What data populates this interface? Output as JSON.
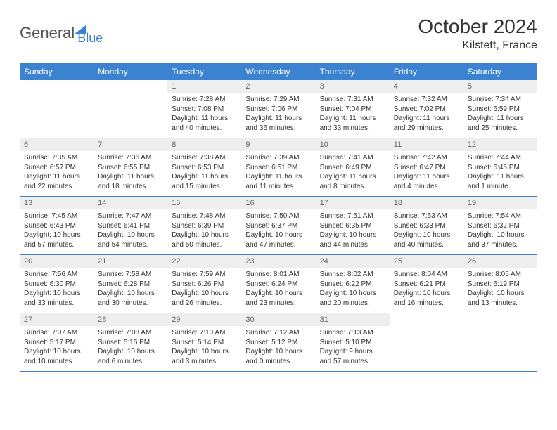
{
  "logo": {
    "general": "General",
    "blue": "Blue"
  },
  "title": "October 2024",
  "location": "Kilstett, France",
  "weekdays": [
    "Sunday",
    "Monday",
    "Tuesday",
    "Wednesday",
    "Thursday",
    "Friday",
    "Saturday"
  ],
  "colors": {
    "header_bg": "#3b82d0",
    "header_text": "#ffffff",
    "daynum_bg": "#eeeeee",
    "daynum_text": "#666666",
    "border": "#3b82d0",
    "body_text": "#333333",
    "logo_gray": "#555555",
    "logo_blue": "#3b82d0"
  },
  "weeks": [
    [
      null,
      null,
      {
        "n": "1",
        "sr": "Sunrise: 7:28 AM",
        "ss": "Sunset: 7:08 PM",
        "d1": "Daylight: 11 hours",
        "d2": "and 40 minutes."
      },
      {
        "n": "2",
        "sr": "Sunrise: 7:29 AM",
        "ss": "Sunset: 7:06 PM",
        "d1": "Daylight: 11 hours",
        "d2": "and 36 minutes."
      },
      {
        "n": "3",
        "sr": "Sunrise: 7:31 AM",
        "ss": "Sunset: 7:04 PM",
        "d1": "Daylight: 11 hours",
        "d2": "and 33 minutes."
      },
      {
        "n": "4",
        "sr": "Sunrise: 7:32 AM",
        "ss": "Sunset: 7:02 PM",
        "d1": "Daylight: 11 hours",
        "d2": "and 29 minutes."
      },
      {
        "n": "5",
        "sr": "Sunrise: 7:34 AM",
        "ss": "Sunset: 6:59 PM",
        "d1": "Daylight: 11 hours",
        "d2": "and 25 minutes."
      }
    ],
    [
      {
        "n": "6",
        "sr": "Sunrise: 7:35 AM",
        "ss": "Sunset: 6:57 PM",
        "d1": "Daylight: 11 hours",
        "d2": "and 22 minutes."
      },
      {
        "n": "7",
        "sr": "Sunrise: 7:36 AM",
        "ss": "Sunset: 6:55 PM",
        "d1": "Daylight: 11 hours",
        "d2": "and 18 minutes."
      },
      {
        "n": "8",
        "sr": "Sunrise: 7:38 AM",
        "ss": "Sunset: 6:53 PM",
        "d1": "Daylight: 11 hours",
        "d2": "and 15 minutes."
      },
      {
        "n": "9",
        "sr": "Sunrise: 7:39 AM",
        "ss": "Sunset: 6:51 PM",
        "d1": "Daylight: 11 hours",
        "d2": "and 11 minutes."
      },
      {
        "n": "10",
        "sr": "Sunrise: 7:41 AM",
        "ss": "Sunset: 6:49 PM",
        "d1": "Daylight: 11 hours",
        "d2": "and 8 minutes."
      },
      {
        "n": "11",
        "sr": "Sunrise: 7:42 AM",
        "ss": "Sunset: 6:47 PM",
        "d1": "Daylight: 11 hours",
        "d2": "and 4 minutes."
      },
      {
        "n": "12",
        "sr": "Sunrise: 7:44 AM",
        "ss": "Sunset: 6:45 PM",
        "d1": "Daylight: 11 hours",
        "d2": "and 1 minute."
      }
    ],
    [
      {
        "n": "13",
        "sr": "Sunrise: 7:45 AM",
        "ss": "Sunset: 6:43 PM",
        "d1": "Daylight: 10 hours",
        "d2": "and 57 minutes."
      },
      {
        "n": "14",
        "sr": "Sunrise: 7:47 AM",
        "ss": "Sunset: 6:41 PM",
        "d1": "Daylight: 10 hours",
        "d2": "and 54 minutes."
      },
      {
        "n": "15",
        "sr": "Sunrise: 7:48 AM",
        "ss": "Sunset: 6:39 PM",
        "d1": "Daylight: 10 hours",
        "d2": "and 50 minutes."
      },
      {
        "n": "16",
        "sr": "Sunrise: 7:50 AM",
        "ss": "Sunset: 6:37 PM",
        "d1": "Daylight: 10 hours",
        "d2": "and 47 minutes."
      },
      {
        "n": "17",
        "sr": "Sunrise: 7:51 AM",
        "ss": "Sunset: 6:35 PM",
        "d1": "Daylight: 10 hours",
        "d2": "and 44 minutes."
      },
      {
        "n": "18",
        "sr": "Sunrise: 7:53 AM",
        "ss": "Sunset: 6:33 PM",
        "d1": "Daylight: 10 hours",
        "d2": "and 40 minutes."
      },
      {
        "n": "19",
        "sr": "Sunrise: 7:54 AM",
        "ss": "Sunset: 6:32 PM",
        "d1": "Daylight: 10 hours",
        "d2": "and 37 minutes."
      }
    ],
    [
      {
        "n": "20",
        "sr": "Sunrise: 7:56 AM",
        "ss": "Sunset: 6:30 PM",
        "d1": "Daylight: 10 hours",
        "d2": "and 33 minutes."
      },
      {
        "n": "21",
        "sr": "Sunrise: 7:58 AM",
        "ss": "Sunset: 6:28 PM",
        "d1": "Daylight: 10 hours",
        "d2": "and 30 minutes."
      },
      {
        "n": "22",
        "sr": "Sunrise: 7:59 AM",
        "ss": "Sunset: 6:26 PM",
        "d1": "Daylight: 10 hours",
        "d2": "and 26 minutes."
      },
      {
        "n": "23",
        "sr": "Sunrise: 8:01 AM",
        "ss": "Sunset: 6:24 PM",
        "d1": "Daylight: 10 hours",
        "d2": "and 23 minutes."
      },
      {
        "n": "24",
        "sr": "Sunrise: 8:02 AM",
        "ss": "Sunset: 6:22 PM",
        "d1": "Daylight: 10 hours",
        "d2": "and 20 minutes."
      },
      {
        "n": "25",
        "sr": "Sunrise: 8:04 AM",
        "ss": "Sunset: 6:21 PM",
        "d1": "Daylight: 10 hours",
        "d2": "and 16 minutes."
      },
      {
        "n": "26",
        "sr": "Sunrise: 8:05 AM",
        "ss": "Sunset: 6:19 PM",
        "d1": "Daylight: 10 hours",
        "d2": "and 13 minutes."
      }
    ],
    [
      {
        "n": "27",
        "sr": "Sunrise: 7:07 AM",
        "ss": "Sunset: 5:17 PM",
        "d1": "Daylight: 10 hours",
        "d2": "and 10 minutes."
      },
      {
        "n": "28",
        "sr": "Sunrise: 7:08 AM",
        "ss": "Sunset: 5:15 PM",
        "d1": "Daylight: 10 hours",
        "d2": "and 6 minutes."
      },
      {
        "n": "29",
        "sr": "Sunrise: 7:10 AM",
        "ss": "Sunset: 5:14 PM",
        "d1": "Daylight: 10 hours",
        "d2": "and 3 minutes."
      },
      {
        "n": "30",
        "sr": "Sunrise: 7:12 AM",
        "ss": "Sunset: 5:12 PM",
        "d1": "Daylight: 10 hours",
        "d2": "and 0 minutes."
      },
      {
        "n": "31",
        "sr": "Sunrise: 7:13 AM",
        "ss": "Sunset: 5:10 PM",
        "d1": "Daylight: 9 hours",
        "d2": "and 57 minutes."
      },
      null,
      null
    ]
  ]
}
